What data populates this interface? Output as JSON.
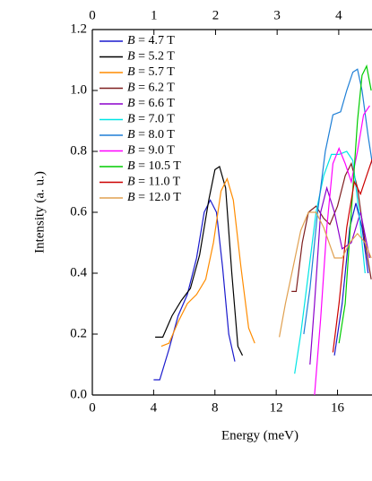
{
  "chart_data": {
    "type": "line",
    "xlabel": "Energy (meV)",
    "ylabel": "Intensity (a. u.)",
    "xlim": [
      0,
      18.25
    ],
    "xticks": [
      0,
      4,
      8,
      12,
      16
    ],
    "x2lim": [
      0,
      4.54
    ],
    "x2ticks": [
      0,
      1,
      2,
      3,
      4
    ],
    "ylim": [
      0,
      1.2
    ],
    "yticks": [
      {
        "value": 0,
        "label": "0.0"
      },
      {
        "value": 0.2,
        "label": "0.2"
      },
      {
        "value": 0.4,
        "label": "0.4"
      },
      {
        "value": 0.6,
        "label": "0.6"
      },
      {
        "value": 0.8,
        "label": "0.8"
      },
      {
        "value": 1.0,
        "label": "1.0"
      },
      {
        "value": 1.2,
        "label": "1.2"
      }
    ],
    "legend": "upper left",
    "series": [
      {
        "name": "B = 4.7 T",
        "color": "#1a1acd",
        "x": [
          4,
          4.4,
          5,
          5.6,
          6.2,
          6.8,
          7.3,
          7.7,
          8.1,
          8.5,
          8.9,
          9.3,
          12,
          15.8,
          16.3,
          16.8,
          17.2,
          17.6,
          18.0
        ],
        "values": [
          0.05,
          0.05,
          0.15,
          0.26,
          0.33,
          0.45,
          0.6,
          0.64,
          0.6,
          0.42,
          0.2,
          0.11,
          null,
          0.13,
          0.3,
          0.55,
          0.63,
          0.55,
          0.4
        ]
      },
      {
        "name": "B = 5.2 T",
        "color": "#000000",
        "x": [
          4.1,
          4.6,
          5.2,
          5.8,
          6.4,
          7,
          7.6,
          8.0,
          8.3,
          8.7,
          9.1,
          9.5,
          9.8
        ],
        "values": [
          0.19,
          0.19,
          0.26,
          0.31,
          0.35,
          0.46,
          0.64,
          0.74,
          0.75,
          0.68,
          0.4,
          0.16,
          0.13
        ]
      },
      {
        "name": "B = 5.7 T",
        "color": "#ff8c00",
        "x": [
          4.5,
          5,
          5.6,
          6.2,
          6.8,
          7.4,
          7.9,
          8.4,
          8.8,
          9.2,
          9.7,
          10.2,
          10.6
        ],
        "values": [
          0.16,
          0.17,
          0.24,
          0.3,
          0.33,
          0.38,
          0.5,
          0.67,
          0.71,
          0.64,
          0.42,
          0.22,
          0.17
        ]
      },
      {
        "name": "B = 6.2 T",
        "color": "#7f1f1f",
        "x": [
          13,
          13.3,
          13.7,
          14.1,
          14.6,
          15.1,
          15.5,
          16,
          16.5,
          16.9,
          17.3,
          17.8,
          18.2
        ],
        "values": [
          0.34,
          0.34,
          0.5,
          0.6,
          0.62,
          0.58,
          0.56,
          0.62,
          0.72,
          0.76,
          0.68,
          0.5,
          0.38
        ]
      },
      {
        "name": "B = 6.6 T",
        "color": "#8b00cc",
        "x": [
          14.2,
          14.5,
          14.9,
          15.3,
          15.8,
          16.3,
          16.9,
          17.5,
          18.1
        ],
        "values": [
          0.1,
          0.3,
          0.6,
          0.68,
          0.6,
          0.48,
          0.5,
          0.6,
          0.45
        ]
      },
      {
        "name": "B = 7.0 T",
        "color": "#00e5e5",
        "x": [
          13.2,
          13.6,
          14.1,
          14.6,
          15.1,
          15.6,
          16.1,
          16.6,
          17.0,
          17.4,
          17.8
        ],
        "values": [
          0.07,
          0.2,
          0.4,
          0.6,
          0.72,
          0.79,
          0.79,
          0.8,
          0.77,
          0.6,
          0.4
        ]
      },
      {
        "name": "B = 8.0 T",
        "color": "#1e7fd6",
        "x": [
          13.8,
          14.2,
          14.7,
          15.2,
          15.7,
          16.2,
          16.6,
          17,
          17.3,
          17.6,
          18,
          18.3
        ],
        "values": [
          0.2,
          0.35,
          0.6,
          0.8,
          0.92,
          0.93,
          1.0,
          1.06,
          1.07,
          1.0,
          0.85,
          0.75
        ]
      },
      {
        "name": "B = 9.0 T",
        "color": "#ff00ff",
        "x": [
          14.5,
          14.9,
          15.3,
          15.7,
          16.1,
          16.5,
          16.9,
          17.3,
          17.7,
          18.1
        ],
        "values": [
          0.0,
          0.25,
          0.55,
          0.76,
          0.81,
          0.76,
          0.7,
          0.8,
          0.92,
          0.95
        ]
      },
      {
        "name": "B = 10.5 T",
        "color": "#00cc00",
        "x": [
          16.1,
          16.5,
          16.9,
          17.3,
          17.6,
          17.9,
          18.2
        ],
        "values": [
          0.17,
          0.3,
          0.6,
          0.9,
          1.05,
          1.08,
          1.0
        ]
      },
      {
        "name": "B = 11.0 T",
        "color": "#cc0000",
        "x": [
          15.7,
          16.1,
          16.6,
          17.1,
          17.5,
          17.9,
          18.3
        ],
        "values": [
          0.14,
          0.3,
          0.55,
          0.7,
          0.66,
          0.72,
          0.78
        ]
      },
      {
        "name": "B = 12.0 T",
        "color": "#e0a050",
        "x": [
          12.2,
          12.6,
          13.1,
          13.6,
          14.1,
          14.6,
          15.1,
          15.8,
          16.3,
          16.8,
          17.3,
          17.8,
          18.2
        ],
        "values": [
          0.19,
          0.3,
          0.42,
          0.54,
          0.6,
          0.6,
          0.55,
          0.45,
          0.45,
          0.5,
          0.53,
          0.5,
          0.45
        ]
      }
    ]
  }
}
